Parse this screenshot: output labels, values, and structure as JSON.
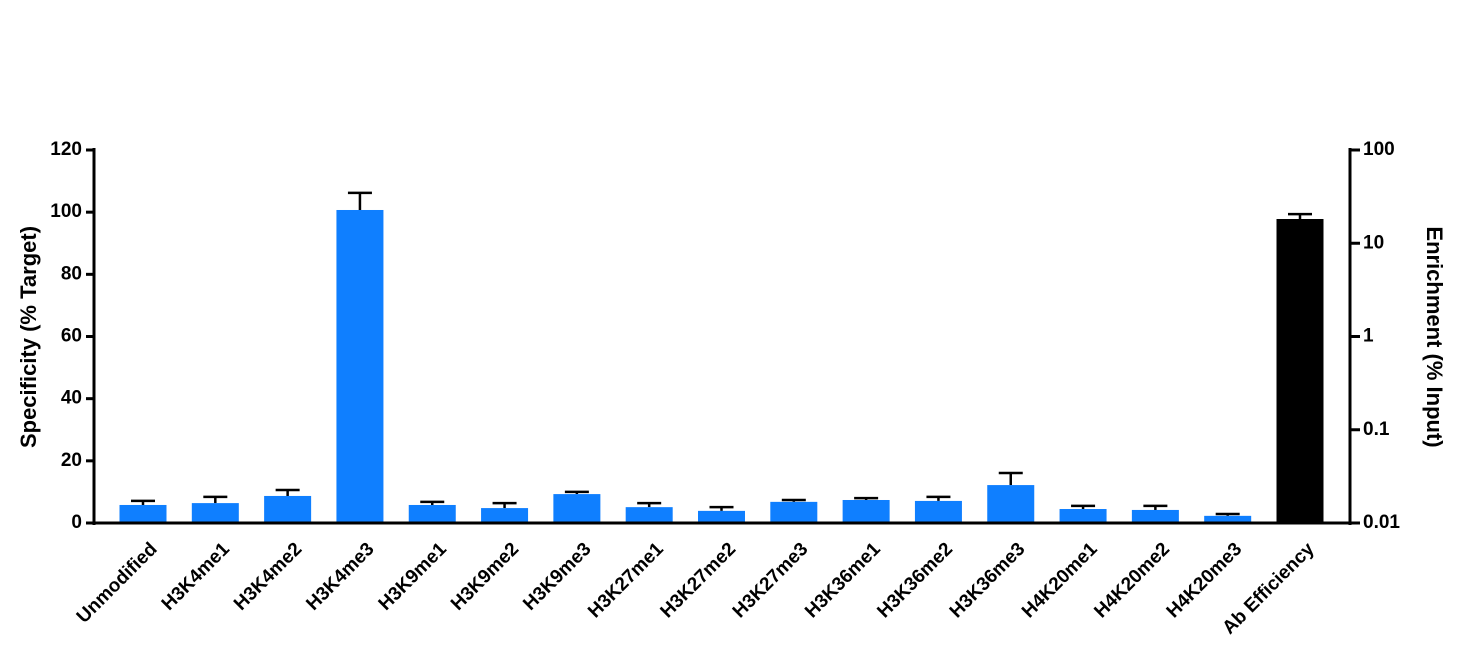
{
  "chart_data": {
    "type": "bar",
    "categories": [
      "Unmodified",
      "H3K4me1",
      "H3K4me2",
      "H3K4me3",
      "H3K9me1",
      "H3K9me2",
      "H3K9me3",
      "H3K27me1",
      "H3K27me2",
      "H3K27me3",
      "H3K36me1",
      "H3K36me2",
      "H3K36me3",
      "H4K20me1",
      "H4K20me2",
      "H4K20me3",
      "Ab Efficiency"
    ],
    "y_label": "Specificity (% Target)",
    "y2_label": "Enrichment (% Input)",
    "ylim": [
      0,
      120
    ],
    "yticks": [
      0,
      20,
      40,
      60,
      80,
      100,
      120
    ],
    "y2lim": [
      0.01,
      100
    ],
    "y2ticks": [
      0.01,
      0.1,
      1,
      10,
      100
    ],
    "y2log": true,
    "series": [
      {
        "color": "#0f7fff",
        "values": [
          5.8,
          6.4,
          8.7,
          100.7,
          5.8,
          4.8,
          9.3,
          5.1,
          3.9,
          6.8,
          7.4,
          7.1,
          12.2,
          4.5,
          4.2,
          2.3,
          null
        ],
        "errors": [
          1.3,
          2.0,
          1.9,
          5.5,
          1.0,
          1.6,
          0.7,
          1.3,
          1.2,
          0.6,
          0.6,
          1.3,
          3.9,
          1.0,
          1.3,
          0.6,
          null
        ]
      },
      {
        "color": "#000000",
        "axis": "y2",
        "values": [
          null,
          null,
          null,
          null,
          null,
          null,
          null,
          null,
          null,
          null,
          null,
          null,
          null,
          null,
          null,
          null,
          18.2
        ],
        "errors": [
          null,
          null,
          null,
          null,
          null,
          null,
          null,
          null,
          null,
          null,
          null,
          null,
          null,
          null,
          null,
          null,
          2.3
        ]
      }
    ]
  }
}
